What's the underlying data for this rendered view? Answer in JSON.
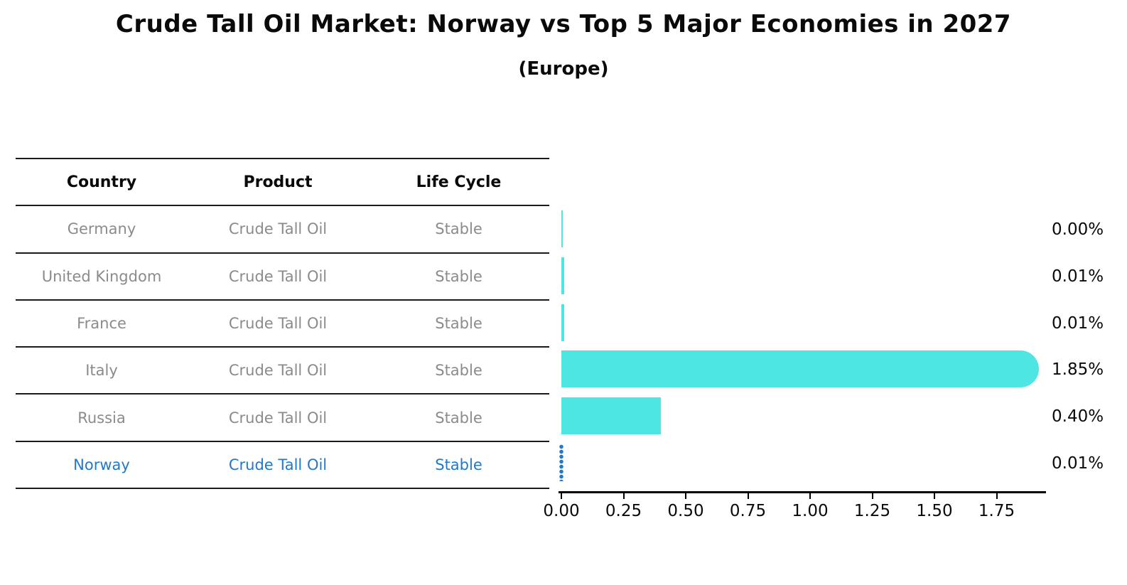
{
  "header": {
    "title": "Crude Tall Oil Market: Norway vs Top 5 Major Economies in 2027",
    "subtitle": "(Europe)"
  },
  "table": {
    "headers": [
      "Country",
      "Product",
      "Life Cycle"
    ],
    "rows": [
      {
        "country": "Germany",
        "product": "Crude Tall Oil",
        "life_cycle": "Stable",
        "highlight": false
      },
      {
        "country": "United Kingdom",
        "product": "Crude Tall Oil",
        "life_cycle": "Stable",
        "highlight": false
      },
      {
        "country": "France",
        "product": "Crude Tall Oil",
        "life_cycle": "Stable",
        "highlight": false
      },
      {
        "country": "Italy",
        "product": "Crude Tall Oil",
        "life_cycle": "Stable",
        "highlight": false
      },
      {
        "country": "Russia",
        "product": "Crude Tall Oil",
        "life_cycle": "Stable",
        "highlight": false
      },
      {
        "country": "Norway",
        "product": "Crude Tall Oil",
        "life_cycle": "Stable",
        "highlight": true
      }
    ]
  },
  "chart_data": {
    "type": "bar",
    "orientation": "horizontal",
    "title": "Crude Tall Oil Market: Norway vs Top 5 Major Economies in 2027",
    "subtitle": "(Europe)",
    "categories": [
      "Germany",
      "United Kingdom",
      "France",
      "Italy",
      "Russia",
      "Norway"
    ],
    "values": [
      0.0,
      0.01,
      0.01,
      1.85,
      0.4,
      0.01
    ],
    "value_labels": [
      "0.00%",
      "0.01%",
      "0.01%",
      "1.85%",
      "0.40%",
      "0.01%"
    ],
    "x_tick_labels": [
      "0.00",
      "0.25",
      "0.50",
      "0.75",
      "1.00",
      "1.25",
      "1.50",
      "1.75"
    ],
    "xlim": [
      0,
      1.94
    ],
    "xlabel": "",
    "ylabel": "",
    "grid": false,
    "legend": "none",
    "highlight_index": 5,
    "colors": {
      "bar": "#4de6e2",
      "highlight": "#2478c8",
      "axis": "#000000",
      "row_text": "#8b8b8b",
      "header_text": "#0a0a0a"
    }
  }
}
